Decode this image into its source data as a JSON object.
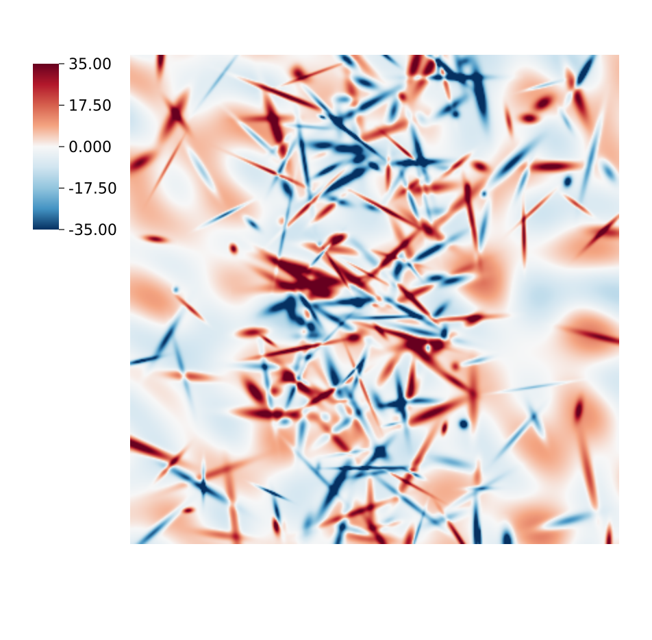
{
  "chart_data": {
    "type": "heatmap",
    "title": "",
    "xlabel": "",
    "ylabel": "",
    "field_description": "2D turbulent vorticity-like field, diverging red-white-blue colormap",
    "colorbar": {
      "min": -35.0,
      "max": 35.0,
      "ticks": [
        35.0,
        17.5,
        0.0,
        -17.5,
        -35.0
      ],
      "tick_labels": [
        "35.00",
        "17.50",
        "0.000",
        "-17.50",
        "-35.00"
      ],
      "placement": "left-top",
      "colormap": "RdBu_r",
      "stops": [
        {
          "value": 35.0,
          "color": "#67001f"
        },
        {
          "value": 26.25,
          "color": "#b2182b"
        },
        {
          "value": 17.5,
          "color": "#d6604d"
        },
        {
          "value": 8.75,
          "color": "#f4a582"
        },
        {
          "value": 0.0,
          "color": "#f7f7f7"
        },
        {
          "value": -8.75,
          "color": "#d1e5f0"
        },
        {
          "value": -17.5,
          "color": "#92c5de"
        },
        {
          "value": -26.25,
          "color": "#4393c3"
        },
        {
          "value": -35.0,
          "color": "#053061"
        }
      ]
    },
    "grid": false,
    "axes_visible": false,
    "seed": 20240611
  }
}
